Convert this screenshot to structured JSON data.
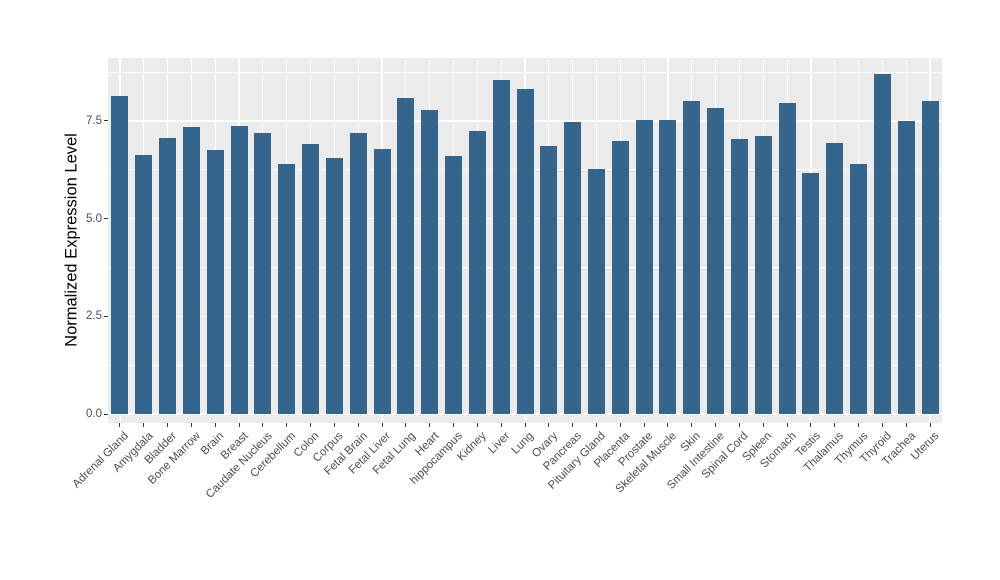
{
  "chart_data": {
    "type": "bar",
    "title": "",
    "xlabel": "",
    "ylabel": "Normalized Expression Level",
    "categories": [
      "Adrenal Gland",
      "Amygdala",
      "Bladder",
      "Bone Marrow",
      "Brain",
      "Breast",
      "Caudate Nucleus",
      "Cerebellum",
      "Colon",
      "Corpus",
      "Fetal Brain",
      "Fetal Liver",
      "Fetal Lung",
      "Heart",
      "hippocampus",
      "Kidney",
      "Liver",
      "Lung",
      "Ovary",
      "Pancreas",
      "Pituitary Gland",
      "Placenta",
      "Prostate",
      "Skeletal Muscle",
      "Skin",
      "Small Intestine",
      "Spinal Cord",
      "Spleen",
      "Stomach",
      "Testis",
      "Thalamus",
      "Thymus",
      "Thyroid",
      "Trachea",
      "Uterus"
    ],
    "values": [
      8.13,
      6.62,
      7.06,
      7.34,
      6.77,
      7.37,
      7.19,
      6.41,
      6.91,
      6.56,
      7.19,
      6.78,
      8.09,
      7.77,
      6.6,
      7.24,
      8.54,
      8.33,
      6.86,
      7.48,
      6.27,
      7.0,
      7.52,
      7.52,
      8.01,
      7.83,
      7.03,
      7.11,
      7.95,
      6.16,
      6.94,
      6.39,
      8.7,
      7.49,
      8.01
    ],
    "ytick_labels": [
      "0.0",
      "2.5",
      "5.0",
      "7.5"
    ],
    "ytick_values": [
      0,
      2.5,
      5.0,
      7.5
    ],
    "minor_gridline_values": [
      1.25,
      3.75,
      6.25,
      8.75
    ],
    "ylim": [
      -0.23,
      9.11
    ],
    "grid": "white major and minor horizontal lines, white vertical lines at category centers",
    "legend": false,
    "colors": {
      "bar": "#36658B",
      "panel_background": "#EBEBEB",
      "gridline": "#FFFFFF",
      "axis_text": "#4D4D4D",
      "axis_title": "#000000",
      "tick_mark": "#333333",
      "figure_background": "#FFFFFF"
    }
  }
}
